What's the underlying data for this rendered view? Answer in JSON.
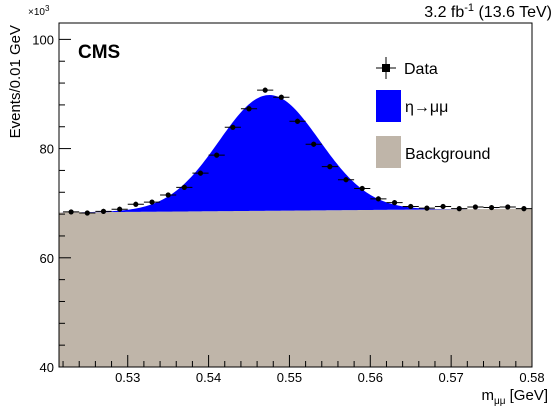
{
  "header": {
    "experiment": "CMS",
    "lumi": "3.2 fb",
    "lumi_superscript": "-1",
    "energy": " (13.6 TeV)"
  },
  "chart_data": {
    "type": "area",
    "title": "",
    "ylabel": "Events/0.01 GeV",
    "y_multiplier": "×10",
    "y_multiplier_exp": "3",
    "xlabel_main": "m",
    "xlabel_sub": "μμ",
    "xlabel_unit": " [GeV]",
    "xlim": [
      0.5215,
      0.58
    ],
    "ylim": [
      40,
      103
    ],
    "xticks": [
      0.53,
      0.54,
      0.55,
      0.56,
      0.57,
      0.58
    ],
    "xtick_labels": [
      "0.53",
      "0.54",
      "0.55",
      "0.56",
      "0.57",
      "0.58"
    ],
    "yticks": [
      40,
      60,
      80,
      100
    ],
    "ytick_labels": [
      "40",
      "60",
      "80",
      "100"
    ],
    "legend_position": "top-right",
    "series": [
      {
        "name": "Data",
        "style": "points with error bars",
        "bin_half_width": 0.001,
        "x": [
          0.523,
          0.525,
          0.527,
          0.529,
          0.531,
          0.533,
          0.535,
          0.537,
          0.539,
          0.541,
          0.543,
          0.545,
          0.547,
          0.549,
          0.551,
          0.553,
          0.555,
          0.557,
          0.559,
          0.561,
          0.563,
          0.565,
          0.567,
          0.569,
          0.571,
          0.573,
          0.575,
          0.577,
          0.579
        ],
        "y": [
          68.4,
          68.2,
          68.5,
          68.9,
          69.8,
          70.2,
          71.5,
          72.9,
          75.5,
          78.8,
          83.9,
          87.3,
          90.7,
          89.4,
          85.0,
          80.8,
          76.7,
          74.3,
          72.7,
          70.8,
          70.1,
          69.4,
          69.1,
          69.4,
          69.0,
          69.3,
          69.2,
          69.3,
          69.0
        ]
      },
      {
        "name": "η→μμ",
        "style": "filled peak",
        "color": "#0000ff",
        "peak_mean": 0.5475,
        "peak_sigma": 0.0062,
        "peak_height": 21.2
      },
      {
        "name": "Background",
        "style": "filled",
        "color": "#bfb5a9",
        "x": [
          0.5215,
          0.58
        ],
        "y": [
          68.3,
          69.0
        ]
      }
    ]
  },
  "colors": {
    "signal": "#0000ff",
    "background": "#bfb5a9",
    "data": "#000000"
  }
}
